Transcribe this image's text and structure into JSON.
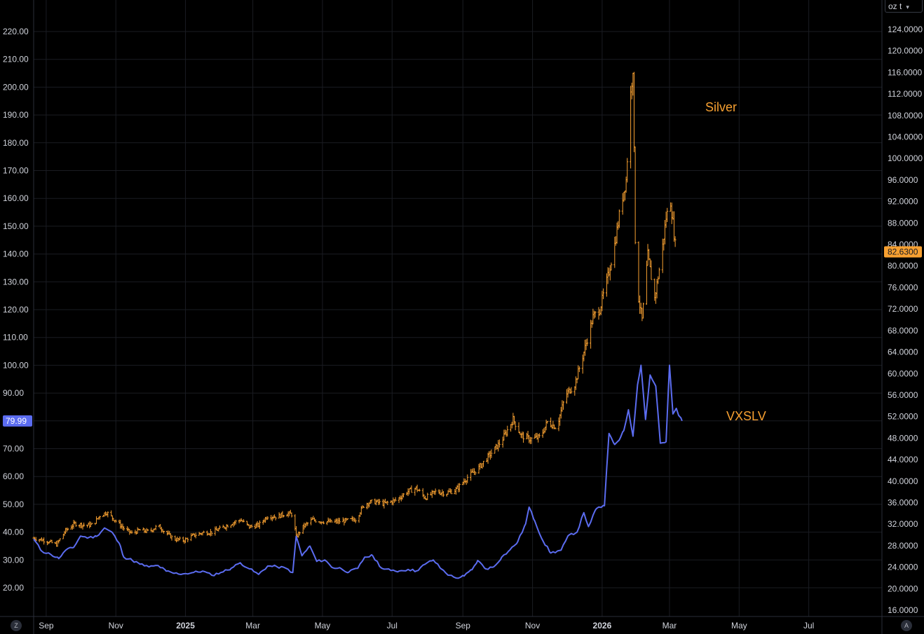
{
  "colors": {
    "background": "#000000",
    "grid": "#1a1c22",
    "axis_text": "#d1d4dc",
    "silver": "#f7a031",
    "vxslv": "#5b6cf0"
  },
  "labels": {
    "unit_selector": "oz t",
    "silver_annotation": "Silver",
    "vxslv_annotation": "VXSLV",
    "left_corner_button": "Z",
    "right_corner_button": "A",
    "unit_chevron_icon": "chevron-down-icon"
  },
  "chart_data": {
    "type": "line",
    "title": "",
    "x_axis": {
      "ticks": [
        "Sep",
        "Nov",
        "2025",
        "Mar",
        "May",
        "Jul",
        "Sep",
        "Nov",
        "2026",
        "Mar",
        "May",
        "Jul"
      ],
      "bold_ticks": [
        "2025",
        "2026"
      ]
    },
    "left_axis": {
      "ticks": [
        "20.00",
        "30.00",
        "40.00",
        "50.00",
        "60.00",
        "70.00",
        "80.00",
        "90.00",
        "100.00",
        "110.00",
        "120.00",
        "130.00",
        "140.00",
        "150.00",
        "160.00",
        "170.00",
        "180.00",
        "190.00",
        "200.00",
        "210.00",
        "220.00"
      ],
      "range": [
        17,
        221
      ],
      "last_value_label": "79.99",
      "last_value": 79.99
    },
    "right_axis": {
      "unit": "oz t",
      "ticks": [
        "16.0000",
        "20.0000",
        "24.0000",
        "28.0000",
        "32.0000",
        "36.0000",
        "40.0000",
        "44.0000",
        "48.0000",
        "52.0000",
        "56.0000",
        "60.0000",
        "64.0000",
        "68.0000",
        "72.0000",
        "76.0000",
        "80.0000",
        "84.0000",
        "88.0000",
        "92.0000",
        "96.0000",
        "100.0000",
        "104.0000",
        "108.0000",
        "112.0000",
        "116.0000",
        "120.0000",
        "124.0000"
      ],
      "range": [
        16,
        125
      ],
      "last_value_label": "82.6300",
      "last_value": 82.63
    },
    "series": [
      {
        "name": "Silver",
        "axis": "right",
        "style": "ohlc-bars",
        "points": [
          [
            "2024-08-21",
            29.4
          ],
          [
            "2024-09-01",
            28.9
          ],
          [
            "2024-09-10",
            28.2
          ],
          [
            "2024-09-18",
            30.8
          ],
          [
            "2024-09-26",
            32.1
          ],
          [
            "2024-10-05",
            31.8
          ],
          [
            "2024-10-12",
            31.9
          ],
          [
            "2024-10-18",
            33.6
          ],
          [
            "2024-10-24",
            34.2
          ],
          [
            "2024-10-31",
            32.8
          ],
          [
            "2024-11-08",
            31.2
          ],
          [
            "2024-11-15",
            30.3
          ],
          [
            "2024-11-22",
            30.9
          ],
          [
            "2024-11-30",
            30.6
          ],
          [
            "2024-12-08",
            31.7
          ],
          [
            "2024-12-15",
            30.4
          ],
          [
            "2024-12-22",
            29.2
          ],
          [
            "2024-12-31",
            29.0
          ],
          [
            "2025-01-08",
            29.9
          ],
          [
            "2025-01-16",
            30.4
          ],
          [
            "2025-01-24",
            30.5
          ],
          [
            "2025-02-01",
            31.2
          ],
          [
            "2025-02-10",
            32.1
          ],
          [
            "2025-02-18",
            32.8
          ],
          [
            "2025-02-26",
            31.5
          ],
          [
            "2025-03-06",
            31.8
          ],
          [
            "2025-03-14",
            33.5
          ],
          [
            "2025-03-22",
            33.4
          ],
          [
            "2025-03-30",
            34.0
          ],
          [
            "2025-04-05",
            33.8
          ],
          [
            "2025-04-08",
            29.6
          ],
          [
            "2025-04-14",
            31.5
          ],
          [
            "2025-04-22",
            32.8
          ],
          [
            "2025-05-01",
            32.5
          ],
          [
            "2025-05-10",
            32.4
          ],
          [
            "2025-05-20",
            32.6
          ],
          [
            "2025-05-30",
            32.9
          ],
          [
            "2025-06-07",
            35.8
          ],
          [
            "2025-06-15",
            36.2
          ],
          [
            "2025-06-24",
            35.8
          ],
          [
            "2025-07-05",
            36.5
          ],
          [
            "2025-07-14",
            38.0
          ],
          [
            "2025-07-22",
            38.7
          ],
          [
            "2025-07-30",
            36.9
          ],
          [
            "2025-08-08",
            38.0
          ],
          [
            "2025-08-18",
            37.8
          ],
          [
            "2025-08-26",
            38.4
          ],
          [
            "2025-09-05",
            40.7
          ],
          [
            "2025-09-15",
            42.5
          ],
          [
            "2025-09-25",
            45.0
          ],
          [
            "2025-10-05",
            47.5
          ],
          [
            "2025-10-15",
            51.5
          ],
          [
            "2025-10-22",
            48.5
          ],
          [
            "2025-10-30",
            47.8
          ],
          [
            "2025-11-08",
            48.2
          ],
          [
            "2025-11-14",
            51.0
          ],
          [
            "2025-11-22",
            50.0
          ],
          [
            "2025-11-30",
            56.0
          ],
          [
            "2025-12-08",
            58.0
          ],
          [
            "2025-12-16",
            64.0
          ],
          [
            "2025-12-24",
            70.5
          ],
          [
            "2025-12-30",
            72.0
          ],
          [
            "2026-01-06",
            78.0
          ],
          [
            "2026-01-12",
            84.0
          ],
          [
            "2026-01-18",
            92.0
          ],
          [
            "2026-01-22",
            96.0
          ],
          [
            "2026-01-26",
            112.0
          ],
          [
            "2026-01-28",
            117.0
          ],
          [
            "2026-01-30",
            85.0
          ],
          [
            "2026-02-02",
            74.0
          ],
          [
            "2026-02-05",
            70.0
          ],
          [
            "2026-02-10",
            82.0
          ],
          [
            "2026-02-16",
            74.0
          ],
          [
            "2026-02-22",
            82.0
          ],
          [
            "2026-02-26",
            89.0
          ],
          [
            "2026-03-02",
            92.0
          ],
          [
            "2026-03-06",
            84.0
          ],
          [
            "2026-03-09",
            82.63
          ]
        ]
      },
      {
        "name": "VXSLV",
        "axis": "left",
        "style": "line",
        "points": [
          [
            "2024-08-21",
            37.5
          ],
          [
            "2024-08-28",
            33.2
          ],
          [
            "2024-09-05",
            32.0
          ],
          [
            "2024-09-12",
            30.5
          ],
          [
            "2024-09-18",
            33.5
          ],
          [
            "2024-09-25",
            34.5
          ],
          [
            "2024-10-01",
            38.6
          ],
          [
            "2024-10-08",
            38.0
          ],
          [
            "2024-10-15",
            38.5
          ],
          [
            "2024-10-22",
            41.5
          ],
          [
            "2024-10-29",
            39.8
          ],
          [
            "2024-11-05",
            35.0
          ],
          [
            "2024-11-08",
            31.0
          ],
          [
            "2024-11-15",
            30.0
          ],
          [
            "2024-11-22",
            28.5
          ],
          [
            "2024-11-30",
            27.5
          ],
          [
            "2024-12-08",
            28.0
          ],
          [
            "2024-12-15",
            26.0
          ],
          [
            "2024-12-22",
            25.2
          ],
          [
            "2024-12-30",
            25.0
          ],
          [
            "2025-01-08",
            25.5
          ],
          [
            "2025-01-16",
            26.0
          ],
          [
            "2025-01-24",
            24.5
          ],
          [
            "2025-02-01",
            25.5
          ],
          [
            "2025-02-10",
            27.0
          ],
          [
            "2025-02-18",
            29.0
          ],
          [
            "2025-02-26",
            26.8
          ],
          [
            "2025-03-06",
            24.8
          ],
          [
            "2025-03-14",
            27.8
          ],
          [
            "2025-03-22",
            27.6
          ],
          [
            "2025-03-30",
            27.0
          ],
          [
            "2025-04-05",
            25.5
          ],
          [
            "2025-04-08",
            38.5
          ],
          [
            "2025-04-13",
            31.5
          ],
          [
            "2025-04-20",
            35.0
          ],
          [
            "2025-04-26",
            29.5
          ],
          [
            "2025-05-03",
            30.0
          ],
          [
            "2025-05-10",
            27.2
          ],
          [
            "2025-05-17",
            27.0
          ],
          [
            "2025-05-24",
            25.6
          ],
          [
            "2025-06-01",
            27.0
          ],
          [
            "2025-06-07",
            31.0
          ],
          [
            "2025-06-14",
            31.5
          ],
          [
            "2025-06-22",
            27.0
          ],
          [
            "2025-06-30",
            26.2
          ],
          [
            "2025-07-07",
            26.0
          ],
          [
            "2025-07-15",
            26.6
          ],
          [
            "2025-07-22",
            26.0
          ],
          [
            "2025-07-30",
            28.5
          ],
          [
            "2025-08-06",
            30.0
          ],
          [
            "2025-08-13",
            26.8
          ],
          [
            "2025-08-20",
            24.5
          ],
          [
            "2025-08-26",
            23.5
          ],
          [
            "2025-09-02",
            24.2
          ],
          [
            "2025-09-09",
            26.5
          ],
          [
            "2025-09-14",
            29.8
          ],
          [
            "2025-09-21",
            26.8
          ],
          [
            "2025-09-28",
            27.5
          ],
          [
            "2025-10-05",
            31.0
          ],
          [
            "2025-10-12",
            33.5
          ],
          [
            "2025-10-19",
            36.5
          ],
          [
            "2025-10-26",
            43.0
          ],
          [
            "2025-10-29",
            49.0
          ],
          [
            "2025-11-03",
            44.0
          ],
          [
            "2025-11-10",
            37.0
          ],
          [
            "2025-11-17",
            32.5
          ],
          [
            "2025-11-26",
            33.5
          ],
          [
            "2025-12-03",
            39.0
          ],
          [
            "2025-12-10",
            40.0
          ],
          [
            "2025-12-16",
            47.0
          ],
          [
            "2025-12-20",
            42.0
          ],
          [
            "2025-12-27",
            48.5
          ],
          [
            "2026-01-03",
            49.5
          ],
          [
            "2026-01-07",
            75.5
          ],
          [
            "2026-01-12",
            71.5
          ],
          [
            "2026-01-17",
            74.0
          ],
          [
            "2026-01-20",
            76.5
          ],
          [
            "2026-01-24",
            84.0
          ],
          [
            "2026-01-28",
            74.5
          ],
          [
            "2026-02-01",
            93.0
          ],
          [
            "2026-02-04",
            100.0
          ],
          [
            "2026-02-08",
            80.5
          ],
          [
            "2026-02-12",
            96.5
          ],
          [
            "2026-02-17",
            92.5
          ],
          [
            "2026-02-21",
            72.0
          ],
          [
            "2026-02-26",
            72.5
          ],
          [
            "2026-03-01",
            100.0
          ],
          [
            "2026-03-04",
            82.5
          ],
          [
            "2026-03-07",
            84.5
          ],
          [
            "2026-03-09",
            82.0
          ],
          [
            "2026-03-12",
            79.99
          ]
        ]
      }
    ]
  }
}
